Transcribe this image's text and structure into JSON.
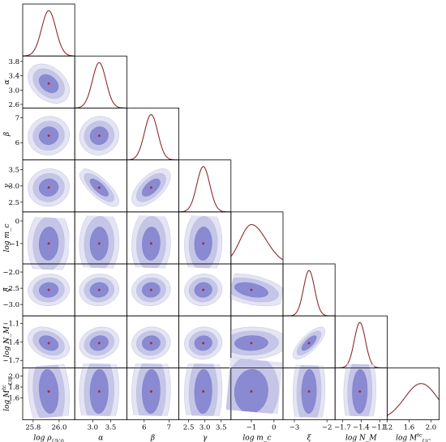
{
  "chart_data": {
    "type": "corner",
    "title": "",
    "colors": {
      "contour_outer": "#e4e4f3",
      "contour_mid": "#c5c5e8",
      "contour_inner": "#8a8ad2",
      "marginal_line": "#8b2c2c",
      "marker": "#a0303c"
    },
    "parameters": [
      {
        "name": "rho",
        "label": "log ρ_{UV,0}",
        "range": [
          25.72,
          26.12
        ],
        "ticks": [
          "25.8",
          "26.0"
        ],
        "tick_values": [
          25.8,
          26.0
        ],
        "center": 25.92,
        "sigma": 0.055
      },
      {
        "name": "alpha",
        "label": "α",
        "range": [
          2.5,
          3.95
        ],
        "ticks": [
          "2.6",
          "3.0",
          "3.4",
          "3.8"
        ],
        "tick_values": [
          2.6,
          3.0,
          3.4,
          3.8
        ],
        "x_ticks": [
          "3.0",
          "3.5"
        ],
        "x_tick_values": [
          3.0,
          3.5
        ],
        "center": 3.18,
        "sigma": 0.19
      },
      {
        "name": "beta",
        "label": "β",
        "range": [
          5.3,
          7.4
        ],
        "ticks": [
          "6",
          "7"
        ],
        "tick_values": [
          6,
          7
        ],
        "center": 6.28,
        "sigma": 0.27
      },
      {
        "name": "gamma",
        "label": "γ",
        "range": [
          2.2,
          3.8
        ],
        "ticks": [
          "2.5",
          "3.0",
          "3.5"
        ],
        "tick_values": [
          2.5,
          3.0,
          3.5
        ],
        "center": 2.95,
        "sigma": 0.2
      },
      {
        "name": "mc",
        "label": "log m_c",
        "range": [
          -1.9,
          0.4
        ],
        "ticks": [
          "−1",
          "0"
        ],
        "tick_values": [
          -1,
          0
        ],
        "center": -1.0,
        "sigma": 0.55,
        "skewed": true
      },
      {
        "name": "xi",
        "label": "ξ",
        "range": [
          -3.35,
          -1.75
        ],
        "ticks": [
          "−3.0",
          "−2.5",
          "−2.0"
        ],
        "tick_values": [
          -3.0,
          -2.5,
          -2.0
        ],
        "x_ticks": [
          "−3",
          "−2"
        ],
        "x_tick_values": [
          -3,
          -2
        ],
        "center": -2.55,
        "sigma": 0.17
      },
      {
        "name": "nm",
        "label": "log N_M",
        "range": [
          -1.82,
          -0.98
        ],
        "ticks": [
          "−1.7",
          "−1.4",
          "−1.1"
        ],
        "tick_values": [
          -1.7,
          -1.4,
          -1.1
        ],
        "center": -1.42,
        "sigma": 0.09
      },
      {
        "name": "mtc",
        "label": "log M^{tc}_{UC}",
        "range": [
          1.2,
          2.15
        ],
        "ticks": [
          "1.2",
          "1.6",
          "2.0"
        ],
        "tick_values": [
          1.2,
          1.6,
          2.0
        ],
        "y_ticks": [
          "1.6",
          "1.8",
          "2.0"
        ],
        "y_tick_values": [
          1.6,
          1.8,
          2.0
        ],
        "center": 1.72,
        "sigma": 0.3
      }
    ],
    "correlations": {
      "rho-alpha": -0.35,
      "alpha-gamma": -0.75,
      "beta-gamma": 0.6,
      "mc-xi": -0.4,
      "xi-nm": 0.75,
      "rho-nm": -0.3,
      "alpha-nm": 0.15,
      "rho-mtc": -0.15
    },
    "contour_levels": [
      1,
      2,
      3
    ]
  }
}
